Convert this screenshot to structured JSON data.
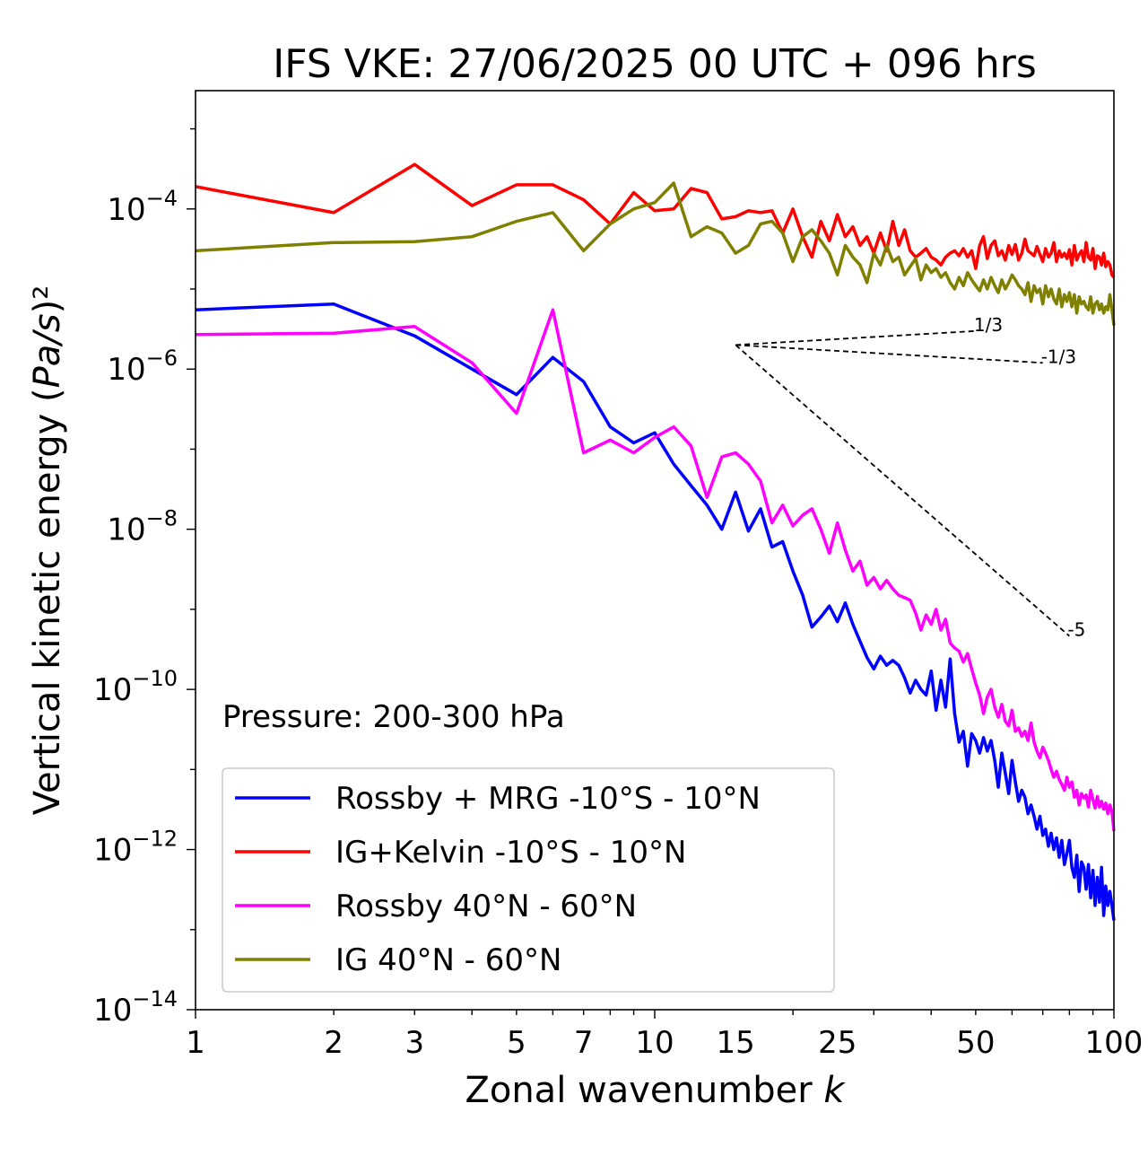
{
  "chart_data": {
    "type": "line",
    "title": "IFS VKE: 27/06/2025 00 UTC + 096 hrs",
    "xlabel": "Zonal wavenumber k",
    "ylabel": "Vertical kinetic energy (Pa/s)²",
    "xscale": "log",
    "yscale": "log",
    "xlim": [
      1,
      100
    ],
    "ylim": [
      1e-14,
      0.003
    ],
    "xticks": [
      1,
      2,
      3,
      5,
      7,
      10,
      15,
      25,
      50,
      100
    ],
    "xtick_labels": [
      "1",
      "2",
      "3",
      "5",
      "7",
      "10",
      "15",
      "25",
      "50",
      "100"
    ],
    "yticks": [
      1e-14,
      1e-12,
      1e-10,
      1e-08,
      1e-06,
      0.0001
    ],
    "ytick_labels": [
      {
        "base": "10",
        "exp": "−14"
      },
      {
        "base": "10",
        "exp": "−12"
      },
      {
        "base": "10",
        "exp": "−10"
      },
      {
        "base": "10",
        "exp": "−8"
      },
      {
        "base": "10",
        "exp": "−6"
      },
      {
        "base": "10",
        "exp": "−4"
      }
    ],
    "grid": false,
    "legend_position": "bottom-left",
    "annotation": "Pressure: 200-300 hPa",
    "series": [
      {
        "name": "Rossby + MRG -10°S - 10°N",
        "color": "#0000ff",
        "x": [
          1,
          2,
          3,
          4,
          5,
          6,
          7,
          8,
          9,
          10,
          11,
          12,
          13,
          14,
          15,
          16,
          17,
          18,
          19,
          20,
          21,
          22,
          23,
          24,
          25,
          26,
          27,
          28,
          29,
          30,
          31,
          32,
          33,
          34,
          35,
          36,
          37,
          38,
          39,
          40,
          41,
          42,
          43,
          44,
          45,
          46,
          47,
          48,
          49,
          50,
          51,
          52,
          53,
          54,
          55,
          56,
          57,
          58,
          59,
          60,
          61,
          62,
          63,
          64,
          65,
          66,
          67,
          68,
          69,
          70,
          71,
          72,
          73,
          74,
          75,
          76,
          77,
          78,
          79,
          80,
          81,
          82,
          83,
          84,
          85,
          86,
          87,
          88,
          89,
          90,
          91,
          92,
          93,
          94,
          95,
          96,
          97,
          98,
          99,
          100
        ],
        "y": [
          5.5e-06,
          6.5e-06,
          2.6e-06,
          1e-06,
          4.8e-07,
          1.4e-06,
          7e-07,
          1.9e-07,
          1.2e-07,
          1.6e-07,
          6.5e-08,
          3.5e-08,
          2e-08,
          1e-08,
          2.9e-08,
          9.5e-09,
          1.8e-08,
          6e-09,
          7e-09,
          3e-09,
          1.5e-09,
          6e-10,
          8e-10,
          1.1e-09,
          7e-10,
          1.2e-09,
          6.5e-10,
          4e-10,
          2.5e-10,
          1.8e-10,
          2.6e-10,
          2e-10,
          2.3e-10,
          2e-10,
          1.4e-10,
          9e-11,
          1.3e-10,
          1e-10,
          8.5e-11,
          1.7e-10,
          5.5e-11,
          1.3e-10,
          6e-11,
          2.4e-10,
          5e-11,
          2.2e-11,
          3e-11,
          1.1e-11,
          2.8e-11,
          2.3e-11,
          1.6e-11,
          2.5e-11,
          1.7e-11,
          2.3e-11,
          1.3e-11,
          6e-12,
          1.6e-11,
          9e-12,
          5e-12,
          1.3e-11,
          7e-12,
          4e-12,
          5.5e-12,
          4.5e-12,
          2.8e-12,
          3.6e-12,
          2.6e-12,
          1.8e-12,
          2.6e-12,
          1.5e-12,
          1.8e-12,
          1.1e-12,
          1.6e-12,
          1e-12,
          1.4e-12,
          8e-13,
          1.3e-12,
          6.5e-13,
          9e-13,
          1.3e-12,
          6e-13,
          4.5e-13,
          8.5e-13,
          3e-13,
          7e-13,
          6e-13,
          3.2e-13,
          6.5e-13,
          2.5e-13,
          5.5e-13,
          2e-13,
          4.5e-13,
          2.2e-13,
          6e-13,
          1.5e-13,
          3.5e-13,
          2e-13,
          3e-13,
          2e-13,
          1.3e-13
        ]
      },
      {
        "name": "IG+Kelvin -10°S - 10°N",
        "color": "#ff0000",
        "x": [
          1,
          2,
          3,
          4,
          5,
          6,
          7,
          8,
          9,
          10,
          11,
          12,
          13,
          14,
          15,
          16,
          17,
          18,
          19,
          20,
          21,
          22,
          23,
          24,
          25,
          26,
          27,
          28,
          29,
          30,
          31,
          32,
          33,
          34,
          35,
          36,
          37,
          38,
          39,
          40,
          41,
          42,
          43,
          44,
          45,
          46,
          47,
          48,
          49,
          50,
          51,
          52,
          53,
          54,
          55,
          56,
          57,
          58,
          59,
          60,
          61,
          62,
          63,
          64,
          65,
          66,
          67,
          68,
          69,
          70,
          71,
          72,
          73,
          74,
          75,
          76,
          77,
          78,
          79,
          80,
          81,
          82,
          83,
          84,
          85,
          86,
          87,
          88,
          89,
          90,
          91,
          92,
          93,
          94,
          95,
          96,
          97,
          98,
          99,
          100
        ],
        "y": [
          0.00019,
          9e-05,
          0.00036,
          0.00011,
          0.0002,
          0.0002,
          0.00013,
          6.5e-05,
          0.00016,
          9.5e-05,
          0.0001,
          0.00018,
          0.00016,
          7.5e-05,
          8e-05,
          9.5e-05,
          9e-05,
          9.5e-05,
          5e-05,
          0.0001,
          4.5e-05,
          2.5e-05,
          7e-05,
          4e-05,
          8.5e-05,
          4.5e-05,
          6e-05,
          3.5e-05,
          4.5e-05,
          2.8e-05,
          5e-05,
          3e-05,
          7e-05,
          3.5e-05,
          5.5e-05,
          3e-05,
          2.5e-05,
          2.8e-05,
          3.2e-05,
          2.5e-05,
          2.3e-05,
          2e-05,
          2.5e-05,
          2.8e-05,
          3e-05,
          2.6e-05,
          3.2e-05,
          2.5e-05,
          3e-05,
          1.8e-05,
          3.5e-05,
          4.5e-05,
          2.4e-05,
          3.5e-05,
          4e-05,
          2.6e-05,
          3e-05,
          2.3e-05,
          3.5e-05,
          2.7e-05,
          3.6e-05,
          2.3e-05,
          2.8e-05,
          4.2e-05,
          3e-05,
          2.8e-05,
          2.6e-05,
          3.4e-05,
          2.7e-05,
          2.2e-05,
          3.2e-05,
          2.5e-05,
          2.8e-05,
          3.8e-05,
          2.2e-05,
          3e-05,
          2.5e-05,
          2.8e-05,
          2.4e-05,
          3.1e-05,
          2e-05,
          3.5e-05,
          2.3e-05,
          2.7e-05,
          3e-05,
          2.2e-05,
          3.8e-05,
          2.5e-05,
          2.3e-05,
          3.2e-05,
          1.8e-05,
          2.6e-05,
          2.5e-05,
          2e-05,
          2.8e-05,
          1.9e-05,
          2.2e-05,
          2e-05,
          1.5e-05,
          1.4e-05
        ]
      },
      {
        "name": "Rossby 40°N - 60°N",
        "color": "#ff00ff",
        "x": [
          1,
          2,
          3,
          4,
          5,
          6,
          7,
          8,
          9,
          10,
          11,
          12,
          13,
          14,
          15,
          16,
          17,
          18,
          19,
          20,
          21,
          22,
          23,
          24,
          25,
          26,
          27,
          28,
          29,
          30,
          31,
          32,
          33,
          34,
          35,
          36,
          37,
          38,
          39,
          40,
          41,
          42,
          43,
          44,
          45,
          46,
          47,
          48,
          49,
          50,
          51,
          52,
          53,
          54,
          55,
          56,
          57,
          58,
          59,
          60,
          61,
          62,
          63,
          64,
          65,
          66,
          67,
          68,
          69,
          70,
          71,
          72,
          73,
          74,
          75,
          76,
          77,
          78,
          79,
          80,
          81,
          82,
          83,
          84,
          85,
          86,
          87,
          88,
          89,
          90,
          91,
          92,
          93,
          94,
          95,
          96,
          97,
          98,
          99,
          100
        ],
        "y": [
          2.7e-06,
          2.8e-06,
          3.4e-06,
          1.2e-06,
          2.8e-07,
          5.5e-06,
          9e-08,
          1.3e-07,
          9e-08,
          1.4e-07,
          1.9e-07,
          1.1e-07,
          2.5e-08,
          8e-08,
          9e-08,
          6.5e-08,
          4e-08,
          1.2e-08,
          2e-08,
          1.1e-08,
          1.5e-08,
          1.8e-08,
          1e-08,
          5e-09,
          1.2e-08,
          5.5e-09,
          3e-09,
          4e-09,
          2e-09,
          2.5e-09,
          1.8e-09,
          2.3e-09,
          1.8e-09,
          1.5e-09,
          1.4e-09,
          1.3e-09,
          9e-10,
          5.5e-10,
          8.5e-10,
          6.5e-10,
          1e-09,
          5.5e-10,
          7.5e-10,
          3.8e-10,
          3.3e-10,
          3e-10,
          2.2e-10,
          2.8e-10,
          1.8e-10,
          1.2e-10,
          8.5e-11,
          5e-11,
          8e-11,
          1e-10,
          6e-11,
          4.5e-11,
          6.5e-11,
          4e-11,
          3.5e-11,
          5.5e-11,
          3e-11,
          3.3e-11,
          2.6e-11,
          3e-11,
          2.3e-11,
          3.8e-11,
          2.2e-11,
          1.7e-11,
          1.4e-11,
          1.9e-11,
          1.6e-11,
          1.3e-11,
          1e-11,
          8e-12,
          9.5e-12,
          7.5e-12,
          6.5e-12,
          5.5e-12,
          8e-12,
          6e-12,
          7e-12,
          4.5e-12,
          5.5e-12,
          3.6e-12,
          5e-12,
          4.4e-12,
          4.8e-12,
          3.4e-12,
          5.5e-12,
          4.2e-12,
          3.3e-12,
          4.6e-12,
          3.4e-12,
          4e-12,
          3.2e-12,
          3.8e-12,
          2.8e-12,
          3.6e-12,
          3e-12,
          1.7e-12
        ]
      },
      {
        "name": "IG 40°N - 60°N",
        "color": "#808000",
        "x": [
          1,
          2,
          3,
          4,
          5,
          6,
          7,
          8,
          9,
          10,
          11,
          12,
          13,
          14,
          15,
          16,
          17,
          18,
          19,
          20,
          21,
          22,
          23,
          24,
          25,
          26,
          27,
          28,
          29,
          30,
          31,
          32,
          33,
          34,
          35,
          36,
          37,
          38,
          39,
          40,
          41,
          42,
          43,
          44,
          45,
          46,
          47,
          48,
          49,
          50,
          51,
          52,
          53,
          54,
          55,
          56,
          57,
          58,
          59,
          60,
          61,
          62,
          63,
          64,
          65,
          66,
          67,
          68,
          69,
          70,
          71,
          72,
          73,
          74,
          75,
          76,
          77,
          78,
          79,
          80,
          81,
          82,
          83,
          84,
          85,
          86,
          87,
          88,
          89,
          90,
          91,
          92,
          93,
          94,
          95,
          96,
          97,
          98,
          99,
          100
        ],
        "y": [
          3e-05,
          3.8e-05,
          3.9e-05,
          4.5e-05,
          7e-05,
          9e-05,
          3e-05,
          6.5e-05,
          0.0001,
          0.00012,
          0.00021,
          4.5e-05,
          6e-05,
          5e-05,
          2.8e-05,
          3.5e-05,
          6.5e-05,
          7e-05,
          5e-05,
          2.2e-05,
          4.5e-05,
          5.5e-05,
          4e-05,
          2.8e-05,
          1.5e-05,
          3.5e-05,
          2.5e-05,
          2e-05,
          1.2e-05,
          2.8e-05,
          2e-05,
          3.5e-05,
          2.2e-05,
          2.5e-05,
          1.5e-05,
          1.9e-05,
          2.4e-05,
          1.3e-05,
          2e-05,
          1.6e-05,
          1.8e-05,
          1.4e-05,
          1.6e-05,
          1.2e-05,
          1e-05,
          1.4e-05,
          1.1e-05,
          1.6e-05,
          1.3e-05,
          1.1e-05,
          9.5e-06,
          1.3e-05,
          1e-05,
          1.4e-05,
          1.1e-05,
          9e-06,
          1.3e-05,
          1e-05,
          1.2e-05,
          1.5e-05,
          1.3e-05,
          1.1e-05,
          1e-05,
          8.5e-06,
          1.2e-05,
          7e-06,
          1.1e-05,
          9e-06,
          1e-05,
          6.5e-06,
          1.1e-05,
          8e-06,
          1e-05,
          7.5e-06,
          6.5e-06,
          1e-05,
          6e-06,
          8.5e-06,
          7e-06,
          9e-06,
          6e-06,
          8.5e-06,
          5e-06,
          8e-06,
          6.5e-06,
          7e-06,
          6e-06,
          5.5e-06,
          8e-06,
          5e-06,
          6.5e-06,
          7e-06,
          5.5e-06,
          6.5e-06,
          5e-06,
          6e-06,
          5.5e-06,
          8.5e-06,
          5.5e-06,
          3.5e-06
        ]
      }
    ],
    "reference_lines": [
      {
        "label": "1/3",
        "slope": 0.3333333,
        "x_start": 15,
        "x_end": 50,
        "y_start": 2e-06
      },
      {
        "label": "-1/3",
        "slope": -0.3333333,
        "x_start": 15,
        "x_end": 70,
        "y_start": 2e-06
      },
      {
        "label": "-5",
        "slope": -5,
        "x_start": 15,
        "x_end": 80,
        "y_start": 2e-06
      }
    ]
  }
}
